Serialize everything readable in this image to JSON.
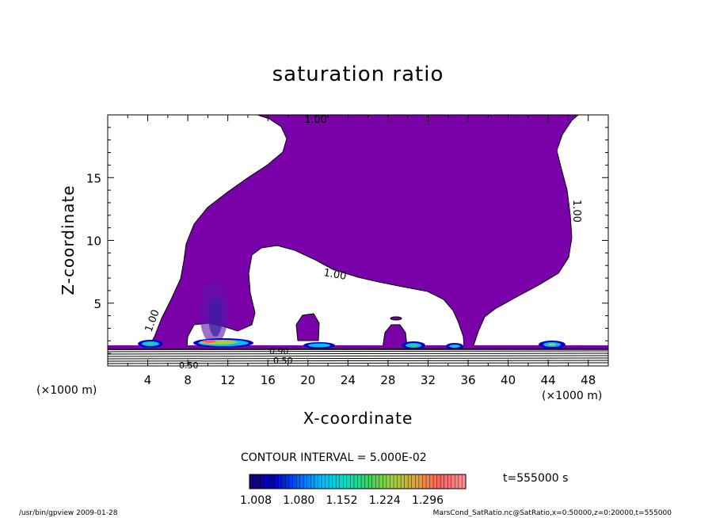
{
  "chart_data": {
    "type": "heatmap",
    "title": "saturation ratio",
    "xlabel": "X-coordinate",
    "ylabel": "Z-coordinate",
    "x_unit_label": "(×1000 m)",
    "x_unit_label_right": "(×1000 m)",
    "xlim": [
      0,
      50
    ],
    "ylim": [
      0,
      20
    ],
    "x_ticks": [
      4,
      8,
      12,
      16,
      20,
      24,
      28,
      32,
      36,
      40,
      44,
      48
    ],
    "y_ticks": [
      5,
      10,
      15
    ],
    "contour_labels": [
      "1.00",
      "1.00",
      "1.00",
      "1.00",
      "0.90",
      "0.50",
      "0.50"
    ],
    "contour_interval_text": "CONTOUR INTERVAL = 5.000E-02",
    "time_text": "t=555000 s",
    "colorbar": {
      "min": 1.008,
      "max": 1.296,
      "tick_labels": [
        "1.008",
        "1.080",
        "1.152",
        "1.224",
        "1.296"
      ],
      "colors": [
        "#1a0078",
        "#0000c8",
        "#0060ff",
        "#00c0ff",
        "#00e0c0",
        "#40d060",
        "#a0d040",
        "#e0a040",
        "#ff6060",
        "#ff9090"
      ]
    },
    "fill_color_saturated": "#7a00aa",
    "footer_left": "/usr/bin/gpview  2009-01-28",
    "footer_right": "MarsCond_SatRatio.nc@SatRatio,x=0:50000,z=0:20000,t=555000"
  }
}
